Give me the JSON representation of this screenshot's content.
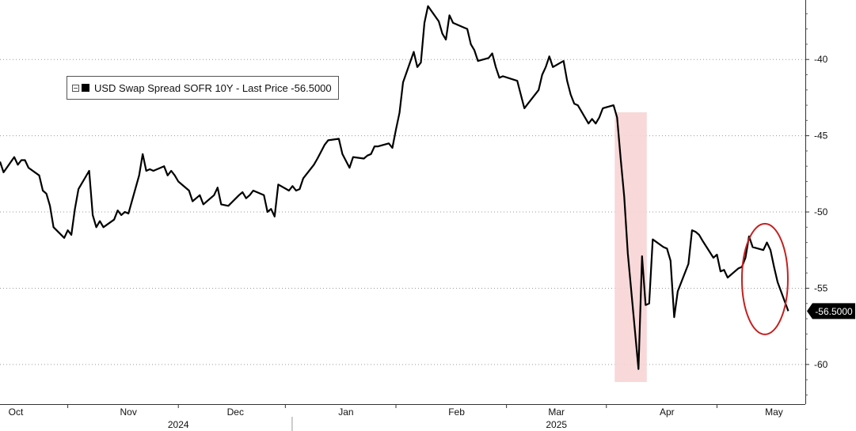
{
  "chart_data": {
    "type": "line",
    "legend": {
      "entry": "USD Swap Spread SOFR 10Y - Last Price -56.5000",
      "placement": "top-left"
    },
    "last_price_label": "-56.5000",
    "last_value": -56.5,
    "y_axis": {
      "side": "right",
      "ylim": [
        -62.6,
        -36.1
      ],
      "ticks": [
        -40,
        -45,
        -50,
        -55,
        -60
      ],
      "tick_labels": [
        "-40",
        "-45",
        "-50",
        "-55",
        "-60"
      ]
    },
    "x_axis": {
      "month_labels": [
        {
          "label": "Oct",
          "date": "2024-10-01"
        },
        {
          "label": "Nov",
          "date": "2024-11-01"
        },
        {
          "label": "Dec",
          "date": "2024-12-01"
        },
        {
          "label": "Jan",
          "date": "2025-01-01"
        },
        {
          "label": "Feb",
          "date": "2025-02-01"
        },
        {
          "label": "Mar",
          "date": "2025-03-01"
        },
        {
          "label": "Apr",
          "date": "2025-04-01"
        },
        {
          "label": "May",
          "date": "2025-05-01"
        }
      ],
      "year_labels": [
        {
          "label": "2024",
          "date": "2024-11-15"
        },
        {
          "label": "2025",
          "date": "2025-03-01"
        }
      ],
      "year_separator_date": "2025-01-01"
    },
    "grid": "dotted horizontal",
    "series": [
      {
        "color": "#000000",
        "points": [
          [
            "2024-09-26",
            -46.7
          ],
          [
            "2024-09-27",
            -47.4
          ],
          [
            "2024-09-30",
            -46.4
          ],
          [
            "2024-10-01",
            -46.9
          ],
          [
            "2024-10-02",
            -46.6
          ],
          [
            "2024-10-03",
            -46.6
          ],
          [
            "2024-10-04",
            -47.1
          ],
          [
            "2024-10-07",
            -47.6
          ],
          [
            "2024-10-08",
            -48.6
          ],
          [
            "2024-10-09",
            -48.8
          ],
          [
            "2024-10-10",
            -49.6
          ],
          [
            "2024-10-11",
            -51.0
          ],
          [
            "2024-10-14",
            -51.7
          ],
          [
            "2024-10-15",
            -51.2
          ],
          [
            "2024-10-16",
            -51.5
          ],
          [
            "2024-10-17",
            -49.8
          ],
          [
            "2024-10-18",
            -48.5
          ],
          [
            "2024-10-21",
            -47.3
          ],
          [
            "2024-10-22",
            -50.2
          ],
          [
            "2024-10-23",
            -51.0
          ],
          [
            "2024-10-24",
            -50.6
          ],
          [
            "2024-10-25",
            -51.0
          ],
          [
            "2024-10-28",
            -50.5
          ],
          [
            "2024-10-29",
            -49.9
          ],
          [
            "2024-10-30",
            -50.2
          ],
          [
            "2024-10-31",
            -50.0
          ],
          [
            "2024-11-01",
            -50.1
          ],
          [
            "2024-11-04",
            -47.6
          ],
          [
            "2024-11-05",
            -46.2
          ],
          [
            "2024-11-06",
            -47.3
          ],
          [
            "2024-11-07",
            -47.2
          ],
          [
            "2024-11-08",
            -47.3
          ],
          [
            "2024-11-11",
            -47.0
          ],
          [
            "2024-11-12",
            -47.6
          ],
          [
            "2024-11-13",
            -47.3
          ],
          [
            "2024-11-14",
            -47.6
          ],
          [
            "2024-11-15",
            -48.0
          ],
          [
            "2024-11-18",
            -48.6
          ],
          [
            "2024-11-19",
            -49.3
          ],
          [
            "2024-11-20",
            -49.1
          ],
          [
            "2024-11-21",
            -48.9
          ],
          [
            "2024-11-22",
            -49.5
          ],
          [
            "2024-11-25",
            -48.9
          ],
          [
            "2024-11-26",
            -48.4
          ],
          [
            "2024-11-27",
            -49.5
          ],
          [
            "2024-11-29",
            -49.6
          ],
          [
            "2024-12-02",
            -48.9
          ],
          [
            "2024-12-03",
            -48.7
          ],
          [
            "2024-12-04",
            -49.1
          ],
          [
            "2024-12-05",
            -48.9
          ],
          [
            "2024-12-06",
            -48.6
          ],
          [
            "2024-12-09",
            -48.9
          ],
          [
            "2024-12-10",
            -50.0
          ],
          [
            "2024-12-11",
            -49.8
          ],
          [
            "2024-12-12",
            -50.3
          ],
          [
            "2024-12-13",
            -48.2
          ],
          [
            "2024-12-16",
            -48.6
          ],
          [
            "2024-12-17",
            -48.3
          ],
          [
            "2024-12-18",
            -48.6
          ],
          [
            "2024-12-19",
            -48.5
          ],
          [
            "2024-12-20",
            -47.8
          ],
          [
            "2024-12-23",
            -46.9
          ],
          [
            "2024-12-24",
            -46.5
          ],
          [
            "2024-12-26",
            -45.6
          ],
          [
            "2024-12-27",
            -45.3
          ],
          [
            "2024-12-30",
            -45.2
          ],
          [
            "2024-12-31",
            -46.2
          ],
          [
            "2025-01-02",
            -47.1
          ],
          [
            "2025-01-03",
            -46.4
          ],
          [
            "2025-01-06",
            -46.5
          ],
          [
            "2025-01-07",
            -46.3
          ],
          [
            "2025-01-08",
            -46.2
          ],
          [
            "2025-01-09",
            -45.7
          ],
          [
            "2025-01-10",
            -45.7
          ],
          [
            "2025-01-13",
            -45.5
          ],
          [
            "2025-01-14",
            -45.8
          ],
          [
            "2025-01-15",
            -44.6
          ],
          [
            "2025-01-16",
            -43.5
          ],
          [
            "2025-01-17",
            -41.5
          ],
          [
            "2025-01-20",
            -39.5
          ],
          [
            "2025-01-21",
            -40.5
          ],
          [
            "2025-01-22",
            -40.2
          ],
          [
            "2025-01-23",
            -37.6
          ],
          [
            "2025-01-24",
            -36.5
          ],
          [
            "2025-01-27",
            -37.5
          ],
          [
            "2025-01-28",
            -38.3
          ],
          [
            "2025-01-29",
            -38.7
          ],
          [
            "2025-01-30",
            -37.1
          ],
          [
            "2025-01-31",
            -37.6
          ],
          [
            "2025-02-03",
            -37.9
          ],
          [
            "2025-02-04",
            -38.0
          ],
          [
            "2025-02-05",
            -39.0
          ],
          [
            "2025-02-06",
            -39.4
          ],
          [
            "2025-02-07",
            -40.1
          ],
          [
            "2025-02-10",
            -39.9
          ],
          [
            "2025-02-11",
            -39.6
          ],
          [
            "2025-02-12",
            -40.5
          ],
          [
            "2025-02-13",
            -41.2
          ],
          [
            "2025-02-14",
            -41.1
          ],
          [
            "2025-02-18",
            -41.4
          ],
          [
            "2025-02-19",
            -42.3
          ],
          [
            "2025-02-20",
            -43.2
          ],
          [
            "2025-02-21",
            -42.9
          ],
          [
            "2025-02-24",
            -42.0
          ],
          [
            "2025-02-25",
            -41.0
          ],
          [
            "2025-02-26",
            -40.5
          ],
          [
            "2025-02-27",
            -39.8
          ],
          [
            "2025-02-28",
            -40.5
          ],
          [
            "2025-03-03",
            -40.1
          ],
          [
            "2025-03-04",
            -41.4
          ],
          [
            "2025-03-05",
            -42.3
          ],
          [
            "2025-03-06",
            -42.9
          ],
          [
            "2025-03-07",
            -43.0
          ],
          [
            "2025-03-10",
            -44.2
          ],
          [
            "2025-03-11",
            -43.9
          ],
          [
            "2025-03-12",
            -44.2
          ],
          [
            "2025-03-13",
            -43.8
          ],
          [
            "2025-03-14",
            -43.2
          ],
          [
            "2025-03-17",
            -43.0
          ],
          [
            "2025-03-18",
            -43.8
          ],
          [
            "2025-03-19",
            -46.5
          ],
          [
            "2025-03-20",
            -49.0
          ],
          [
            "2025-03-21",
            -52.7
          ],
          [
            "2025-03-24",
            -60.3
          ],
          [
            "2025-03-25",
            -52.9
          ],
          [
            "2025-03-26",
            -56.1
          ],
          [
            "2025-03-27",
            -56.0
          ],
          [
            "2025-03-28",
            -51.8
          ],
          [
            "2025-03-31",
            -52.3
          ],
          [
            "2025-04-01",
            -52.4
          ],
          [
            "2025-04-02",
            -53.2
          ],
          [
            "2025-04-03",
            -56.9
          ],
          [
            "2025-04-04",
            -55.2
          ],
          [
            "2025-04-07",
            -53.4
          ],
          [
            "2025-04-08",
            -51.2
          ],
          [
            "2025-04-09",
            -51.3
          ],
          [
            "2025-04-10",
            -51.5
          ],
          [
            "2025-04-11",
            -51.9
          ],
          [
            "2025-04-14",
            -53.0
          ],
          [
            "2025-04-15",
            -52.8
          ],
          [
            "2025-04-16",
            -53.9
          ],
          [
            "2025-04-17",
            -53.8
          ],
          [
            "2025-04-18",
            -54.3
          ],
          [
            "2025-04-21",
            -53.7
          ],
          [
            "2025-04-22",
            -53.6
          ],
          [
            "2025-04-23",
            -53.0
          ],
          [
            "2025-04-24",
            -51.6
          ],
          [
            "2025-04-25",
            -52.3
          ],
          [
            "2025-04-28",
            -52.5
          ],
          [
            "2025-04-29",
            -52.0
          ],
          [
            "2025-04-30",
            -52.5
          ],
          [
            "2025-05-01",
            -53.6
          ],
          [
            "2025-05-02",
            -54.6
          ],
          [
            "2025-05-05",
            -56.5
          ]
        ]
      }
    ],
    "highlight": {
      "from_date": "2025-03-18",
      "to_date": "2025-03-25",
      "color": "#f7d4d4"
    },
    "annotation_circle": {
      "center_date": "2025-04-28",
      "center_value": -54.4,
      "color": "#c42020"
    }
  }
}
